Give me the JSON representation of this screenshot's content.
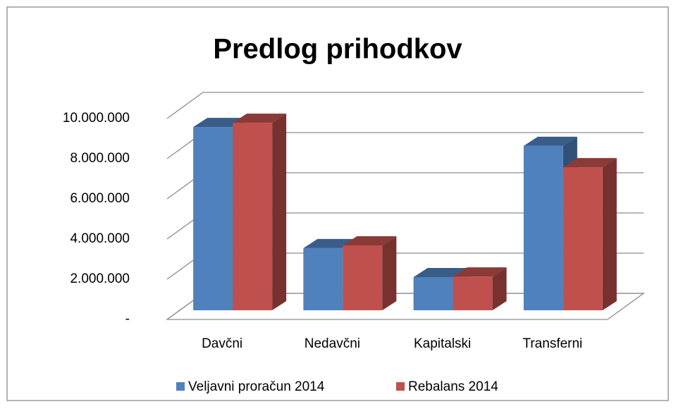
{
  "chart_data": {
    "type": "bar3d",
    "title": "Predlog prihodkov",
    "categories": [
      "Davčni",
      "Nedavčni",
      "Kapitalski",
      "Transferni"
    ],
    "series": [
      {
        "name": "Veljavni proračun 2014",
        "color": "#4f81bd",
        "values": [
          9120000,
          3090000,
          1650000,
          8180000
        ]
      },
      {
        "name": "Rebalans 2014",
        "color": "#c0504d",
        "values": [
          9330000,
          3230000,
          1680000,
          7120000
        ]
      }
    ],
    "ylim": [
      0,
      10000000
    ],
    "yticks": [
      {
        "value": 0,
        "label": "-"
      },
      {
        "value": 2000000,
        "label": "2.000.000"
      },
      {
        "value": 4000000,
        "label": "4.000.000"
      },
      {
        "value": 6000000,
        "label": "6.000.000"
      },
      {
        "value": 8000000,
        "label": "8.000.000"
      },
      {
        "value": 10000000,
        "label": "10.000.000"
      }
    ],
    "grid": true,
    "legend": "bottom"
  }
}
